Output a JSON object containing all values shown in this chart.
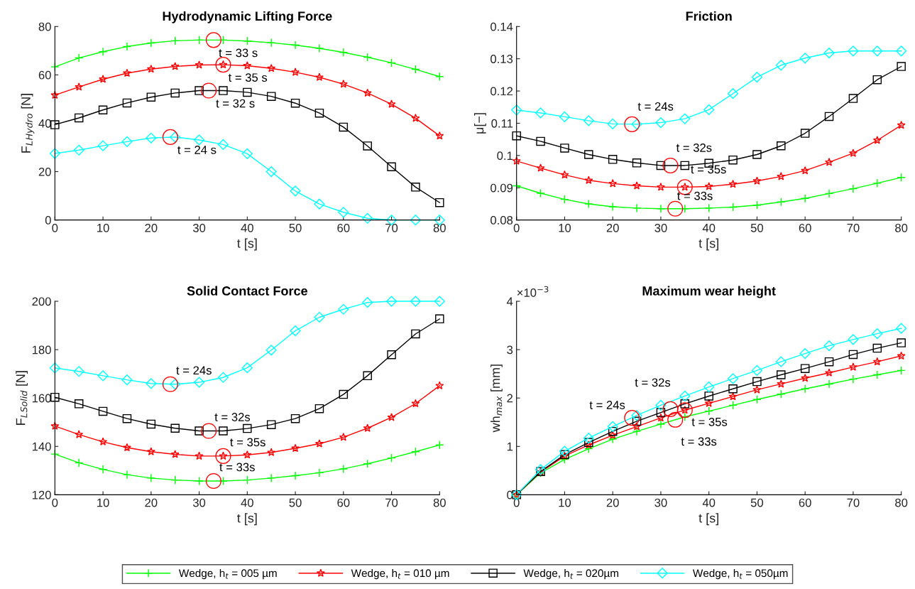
{
  "chart_data": [
    {
      "type": "line",
      "title": "Hydrodynamic Lifting Force",
      "xlabel": "t [s]",
      "ylabel": "F$_{L}$$_{Hydro}$ [N]",
      "x": [
        0,
        5,
        10,
        15,
        20,
        25,
        30,
        35,
        40,
        45,
        50,
        55,
        60,
        65,
        70,
        75,
        80
      ],
      "xlim": [
        0,
        80
      ],
      "xticks": [
        0,
        10,
        20,
        30,
        40,
        50,
        60,
        70,
        80
      ],
      "ylim": [
        0,
        80
      ],
      "yticks": [
        0,
        20,
        40,
        60,
        80
      ],
      "grid": false,
      "legend": "bottom",
      "series": [
        {
          "name": "Wedge, h$_{t}$ = 005 µm",
          "color": "#00ff00",
          "marker": "cross",
          "values": [
            63.3,
            67,
            69.6,
            71.7,
            73.2,
            74.1,
            74.4,
            74.4,
            74.0,
            73.3,
            72.3,
            71,
            69.3,
            67.3,
            65,
            62.3,
            59.3
          ]
        },
        {
          "name": "Wedge, h$_{t}$ = 010 µm",
          "color": "#ff0000",
          "marker": "star",
          "values": [
            51.6,
            55,
            58.2,
            60.7,
            62.4,
            63.5,
            64.1,
            64.2,
            63.8,
            62.7,
            61.1,
            59,
            56.2,
            52.5,
            47.9,
            42.1,
            34.8
          ]
        },
        {
          "name": "Wedge, h$_{t}$ = 020µm",
          "color": "#000000",
          "marker": "square",
          "values": [
            39.4,
            42.2,
            45.5,
            48.4,
            50.8,
            52.5,
            53.5,
            53.5,
            52.8,
            51.1,
            48.3,
            44.2,
            38.4,
            30.6,
            22,
            13.6,
            7.2
          ]
        },
        {
          "name": "Wedge, h$_{t}$ = 050µm",
          "color": "#00ffff",
          "marker": "diamond",
          "values": [
            27.5,
            28.9,
            30.7,
            32.4,
            33.9,
            34.3,
            33.1,
            31.2,
            27.4,
            20,
            12,
            6.6,
            3.2,
            0.7,
            0,
            0,
            0
          ]
        }
      ],
      "annotations": [
        {
          "text": "t = 33 s",
          "x": 33,
          "y": 74.4
        },
        {
          "text": "t = 35 s",
          "x": 35,
          "y": 64.2
        },
        {
          "text": "t = 32 s",
          "x": 32,
          "y": 53.5
        },
        {
          "text": "t = 24 s",
          "x": 24,
          "y": 34.3
        }
      ]
    },
    {
      "type": "line",
      "title": "Friction",
      "xlabel": "t [s]",
      "ylabel": "μ[−]",
      "x": [
        0,
        5,
        10,
        15,
        20,
        25,
        30,
        35,
        40,
        45,
        50,
        55,
        60,
        65,
        70,
        75,
        80
      ],
      "xlim": [
        0,
        80
      ],
      "xticks": [
        0,
        10,
        20,
        30,
        40,
        50,
        60,
        70,
        80
      ],
      "ylim": [
        0.08,
        0.14
      ],
      "yticks": [
        0.08,
        0.09,
        0.1,
        0.11,
        0.12,
        0.13,
        0.14
      ],
      "grid": false,
      "series": [
        {
          "color": "#00ff00",
          "marker": "cross",
          "values": [
            0.0906,
            0.0883,
            0.0864,
            0.085,
            0.0841,
            0.0837,
            0.0835,
            0.0835,
            0.0837,
            0.084,
            0.0846,
            0.0856,
            0.0867,
            0.0882,
            0.0897,
            0.0914,
            0.0932
          ]
        },
        {
          "color": "#ff0000",
          "marker": "star",
          "values": [
            0.0983,
            0.0961,
            0.094,
            0.0923,
            0.0913,
            0.0906,
            0.0902,
            0.0902,
            0.0904,
            0.0911,
            0.0921,
            0.0935,
            0.0953,
            0.0979,
            0.1007,
            0.1047,
            0.1094
          ]
        },
        {
          "color": "#000000",
          "marker": "square",
          "values": [
            0.1061,
            0.1044,
            0.1023,
            0.1003,
            0.0988,
            0.0977,
            0.0969,
            0.0969,
            0.0976,
            0.0986,
            0.1003,
            0.103,
            0.1069,
            0.1121,
            0.1177,
            0.1235,
            0.1276
          ]
        },
        {
          "color": "#00ffff",
          "marker": "diamond",
          "values": [
            0.1141,
            0.1132,
            0.112,
            0.1108,
            0.1098,
            0.1097,
            0.1102,
            0.1114,
            0.1142,
            0.1192,
            0.1243,
            0.128,
            0.1302,
            0.1318,
            0.1324,
            0.1324,
            0.1324
          ]
        }
      ],
      "annotations": [
        {
          "text": "t = 24s",
          "x": 24,
          "y": 0.1097
        },
        {
          "text": "t = 32s",
          "x": 32,
          "y": 0.0969
        },
        {
          "text": "t = 35s",
          "x": 35,
          "y": 0.0902
        },
        {
          "text": "t = 33s",
          "x": 33,
          "y": 0.0835
        }
      ]
    },
    {
      "type": "line",
      "title": "Solid Contact Force",
      "xlabel": "t [s]",
      "ylabel": "F$_{L}$$_{Solid}$ [N]",
      "x": [
        0,
        5,
        10,
        15,
        20,
        25,
        30,
        35,
        40,
        45,
        50,
        55,
        60,
        65,
        70,
        75,
        80
      ],
      "xlim": [
        0,
        80
      ],
      "xticks": [
        0,
        10,
        20,
        30,
        40,
        50,
        60,
        70,
        80
      ],
      "ylim": [
        120,
        200
      ],
      "yticks": [
        120,
        140,
        160,
        180,
        200
      ],
      "grid": false,
      "series": [
        {
          "color": "#00ff00",
          "marker": "cross",
          "values": [
            136.8,
            133.2,
            130.5,
            128.3,
            126.9,
            126.1,
            125.7,
            125.7,
            126.1,
            126.9,
            127.9,
            129.1,
            130.7,
            132.8,
            135.2,
            137.8,
            140.6
          ]
        },
        {
          "color": "#ff0000",
          "marker": "star",
          "values": [
            148.4,
            144.9,
            141.9,
            139.5,
            137.8,
            136.7,
            136.0,
            136.0,
            136.5,
            137.5,
            139.2,
            141.1,
            143.8,
            147.5,
            152.0,
            157.7,
            165.1
          ]
        },
        {
          "color": "#000000",
          "marker": "square",
          "values": [
            160.3,
            157.6,
            154.5,
            151.5,
            149.2,
            147.5,
            146.4,
            146.4,
            147.4,
            149.0,
            151.5,
            155.6,
            161.5,
            169.2,
            177.9,
            186.5,
            192.7
          ]
        },
        {
          "color": "#00ffff",
          "marker": "diamond",
          "values": [
            172.4,
            171.0,
            169.2,
            167.5,
            166.0,
            165.7,
            166.5,
            168.5,
            172.5,
            179.8,
            187.8,
            193.4,
            196.7,
            199.5,
            200,
            200,
            200
          ]
        }
      ],
      "annotations": [
        {
          "text": "t = 24s",
          "x": 24,
          "y": 165.7
        },
        {
          "text": "t = 32s",
          "x": 32,
          "y": 146.4
        },
        {
          "text": "t = 35s",
          "x": 35,
          "y": 136.0
        },
        {
          "text": "t = 33s",
          "x": 33,
          "y": 125.7
        }
      ]
    },
    {
      "type": "line",
      "title": "Maximum wear height",
      "xlabel": "t [s]",
      "ylabel": "wh$_{max}$ [mm]",
      "x": [
        0,
        5,
        10,
        15,
        20,
        25,
        30,
        35,
        40,
        45,
        50,
        55,
        60,
        65,
        70,
        75,
        80
      ],
      "xlim": [
        0,
        80
      ],
      "xticks": [
        0,
        10,
        20,
        30,
        40,
        50,
        60,
        70,
        80
      ],
      "ylim": [
        0,
        4
      ],
      "yticks": [
        0,
        1,
        2,
        3,
        4
      ],
      "grid": false,
      "series": [
        {
          "color": "#00ff00",
          "marker": "cross",
          "values": [
            0,
            0.45,
            0.73,
            0.95,
            1.15,
            1.31,
            1.46,
            1.61,
            1.73,
            1.85,
            1.97,
            2.08,
            2.19,
            2.29,
            2.39,
            2.48,
            2.57
          ]
        },
        {
          "color": "#ff0000",
          "marker": "star",
          "values": [
            0,
            0.47,
            0.8,
            1.03,
            1.23,
            1.41,
            1.59,
            1.75,
            1.89,
            2.03,
            2.17,
            2.29,
            2.41,
            2.52,
            2.64,
            2.75,
            2.87
          ]
        },
        {
          "color": "#000000",
          "marker": "square",
          "values": [
            0,
            0.48,
            0.83,
            1.08,
            1.31,
            1.52,
            1.7,
            1.88,
            2.04,
            2.19,
            2.34,
            2.48,
            2.61,
            2.75,
            2.9,
            3.03,
            3.14
          ]
        },
        {
          "color": "#00ffff",
          "marker": "diamond",
          "values": [
            0,
            0.52,
            0.9,
            1.17,
            1.41,
            1.64,
            1.85,
            2.04,
            2.23,
            2.4,
            2.57,
            2.75,
            2.92,
            3.08,
            3.21,
            3.33,
            3.44
          ]
        }
      ],
      "annotations": [
        "×10$^{−3}$",
        {
          "text": "t = 24s",
          "x": 24,
          "y": 1.59
        },
        {
          "text": "t = 32s",
          "x": 32,
          "y": 1.77
        },
        {
          "text": "t = 35s",
          "x": 35,
          "y": 1.75
        },
        {
          "text": "t = 33s",
          "x": 33,
          "y": 1.55
        }
      ]
    }
  ]
}
